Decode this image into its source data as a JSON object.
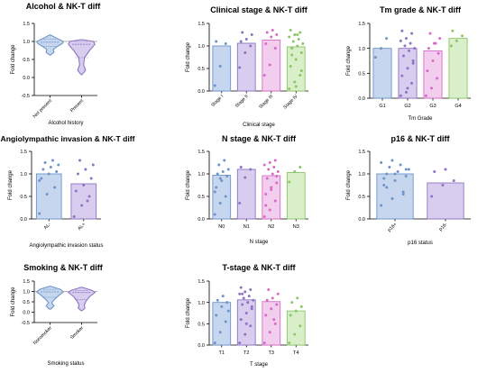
{
  "panels": [
    {
      "title": "Alcohol & NK-T diff",
      "type": "violin",
      "ylabel": "Fold change",
      "xlabel": "Alcohol history",
      "ylim": [
        -0.5,
        1.5
      ],
      "yticks": [
        "-0.5",
        "0.0",
        "0.5",
        "1.0",
        "1.5"
      ],
      "reference_line": 1.0,
      "rotate_ticks": true,
      "categories": [
        "Not present",
        "Present"
      ],
      "colors": [
        "#6f94c9",
        "#8f73c4"
      ],
      "fills": [
        "#c6d6ee",
        "#d8cdee"
      ],
      "violins": [
        {
          "min": 0.62,
          "max": 1.18,
          "median": 0.98,
          "q1": 0.86,
          "q3": 1.06,
          "profile": [
            [
              0.62,
              0.02
            ],
            [
              0.7,
              0.3
            ],
            [
              0.78,
              0.25
            ],
            [
              0.86,
              0.55
            ],
            [
              0.95,
              0.95
            ],
            [
              1.0,
              1.0
            ],
            [
              1.08,
              0.55
            ],
            [
              1.18,
              0.03
            ]
          ]
        },
        {
          "min": 0.08,
          "max": 1.05,
          "median": 0.92,
          "q1": 0.55,
          "q3": 1.0,
          "profile": [
            [
              0.08,
              0.03
            ],
            [
              0.2,
              0.3
            ],
            [
              0.35,
              0.15
            ],
            [
              0.55,
              0.22
            ],
            [
              0.75,
              0.6
            ],
            [
              0.92,
              1.0
            ],
            [
              1.0,
              0.9
            ],
            [
              1.05,
              0.05
            ]
          ]
        }
      ]
    },
    {
      "title": "Clinical stage & NK-T diff",
      "type": "bar",
      "ylabel": "Fold change",
      "xlabel": "Clinical stage",
      "ylim": [
        0.0,
        1.5
      ],
      "yticks": [
        "0.0",
        "0.5",
        "1.0",
        "1.5"
      ],
      "rotate_ticks": true,
      "categories": [
        "Stage I",
        "Stage II",
        "Stage III",
        "Stage IV"
      ],
      "values": [
        1.0,
        1.06,
        1.13,
        0.98
      ],
      "colors": [
        "#6f94c9",
        "#8f73c4",
        "#d66cc7",
        "#8cc668"
      ],
      "fills": [
        "#c6d6ee",
        "#d8cdee",
        "#f3cdee",
        "#d8efca"
      ],
      "points": [
        [
          0.12,
          0.55,
          1.05,
          1.1
        ],
        [
          0.52,
          0.85,
          1.0,
          1.1,
          1.15,
          1.25,
          1.3
        ],
        [
          0.35,
          0.58,
          0.95,
          1.05,
          1.2,
          1.25,
          1.3,
          1.35
        ],
        [
          0.05,
          0.2,
          0.35,
          0.55,
          0.7,
          0.85,
          0.95,
          1.0,
          1.05,
          1.1,
          1.15,
          1.2,
          1.25,
          1.3,
          1.35,
          0.1,
          0.45,
          0.8,
          1.25
        ]
      ]
    },
    {
      "title": "Tm grade & NK-T diff",
      "type": "bar",
      "ylabel": "Fold change",
      "xlabel": "Tm Grade",
      "ylim": [
        0.0,
        1.5
      ],
      "yticks": [
        "0.0",
        "0.5",
        "1.0",
        "1.5"
      ],
      "rotate_ticks": false,
      "categories": [
        "G1",
        "G2",
        "G3",
        "G4"
      ],
      "values": [
        1.0,
        1.0,
        0.95,
        1.2
      ],
      "colors": [
        "#6f94c9",
        "#8f73c4",
        "#d66cc7",
        "#8cc668"
      ],
      "fills": [
        "#c6d6ee",
        "#d8cdee",
        "#f3cdee",
        "#d8efca"
      ],
      "points": [
        [
          0.82,
          1.0,
          1.2
        ],
        [
          0.05,
          0.12,
          0.3,
          0.45,
          0.6,
          0.75,
          0.85,
          0.95,
          1.0,
          1.05,
          1.1,
          1.15,
          1.2,
          1.3,
          1.35,
          0.2,
          0.7
        ],
        [
          0.05,
          0.2,
          0.4,
          0.55,
          0.75,
          0.9,
          1.0,
          1.1,
          1.2,
          1.3,
          1.1
        ],
        [
          1.05,
          1.15,
          1.25,
          1.35
        ]
      ]
    },
    {
      "title": "Angiolympathic invasion & NK-T diff",
      "type": "bar",
      "ylabel": "Fold change",
      "xlabel": "Angiolympathic invasion status",
      "ylim": [
        0.0,
        1.5
      ],
      "yticks": [
        "0.0",
        "0.5",
        "1.0",
        "1.5"
      ],
      "rotate_ticks": true,
      "categories": [
        "AL-",
        "AL+"
      ],
      "values": [
        1.0,
        0.78
      ],
      "colors": [
        "#6f94c9",
        "#8f73c4"
      ],
      "fills": [
        "#c6d6ee",
        "#d8cdee"
      ],
      "points": [
        [
          0.12,
          0.55,
          0.7,
          0.9,
          1.0,
          1.05,
          1.1,
          1.15,
          1.2,
          1.25,
          1.3,
          0.85
        ],
        [
          0.05,
          0.3,
          0.5,
          0.62,
          0.75,
          0.9,
          1.0,
          1.1,
          1.2,
          1.3,
          0.4
        ]
      ]
    },
    {
      "title": "N stage & NK-T diff",
      "type": "bar",
      "ylabel": "Fold change",
      "xlabel": "N stage",
      "ylim": [
        0.0,
        1.5
      ],
      "yticks": [
        "0.0",
        "0.5",
        "1.0",
        "1.5"
      ],
      "rotate_ticks": false,
      "categories": [
        "N0",
        "N1",
        "N2",
        "N3"
      ],
      "values": [
        0.97,
        1.1,
        0.96,
        1.03
      ],
      "colors": [
        "#6f94c9",
        "#8f73c4",
        "#d66cc7",
        "#8cc668"
      ],
      "fills": [
        "#c6d6ee",
        "#d8cdee",
        "#f3cdee",
        "#d8efca"
      ],
      "points": [
        [
          0.1,
          0.35,
          0.5,
          0.7,
          0.85,
          0.95,
          1.0,
          1.05,
          1.1,
          1.2,
          1.3,
          0.6,
          0.9
        ],
        [
          0.35,
          0.92,
          1.1,
          1.15
        ],
        [
          0.05,
          0.2,
          0.4,
          0.55,
          0.7,
          0.8,
          0.9,
          1.0,
          1.05,
          1.1,
          1.15,
          1.2,
          1.25,
          1.3,
          0.3,
          0.65,
          0.95
        ],
        [
          0.82,
          1.05,
          1.15
        ]
      ]
    },
    {
      "title": "p16 & NK-T diff",
      "type": "bar",
      "ylabel": "Fold change",
      "xlabel": "p16 status",
      "ylim": [
        0.0,
        1.5
      ],
      "yticks": [
        "0.0",
        "0.5",
        "1.0",
        "1.5"
      ],
      "rotate_ticks": true,
      "categories": [
        "p16+",
        "p16-"
      ],
      "values": [
        1.0,
        0.8
      ],
      "colors": [
        "#6f94c9",
        "#8f73c4"
      ],
      "fills": [
        "#c6d6ee",
        "#d8cdee"
      ],
      "points": [
        [
          0.3,
          0.45,
          0.6,
          0.75,
          0.85,
          0.95,
          1.0,
          1.05,
          1.1,
          1.15,
          1.2,
          1.25,
          1.3,
          0.55,
          0.9,
          1.0,
          1.1,
          0.7
        ],
        [
          0.5,
          0.75,
          0.85,
          1.05,
          1.1
        ]
      ]
    },
    {
      "title": "Smoking & NK-T diff",
      "type": "violin",
      "ylabel": "Fold change",
      "xlabel": "Smoking status",
      "ylim": [
        -0.5,
        1.5
      ],
      "yticks": [
        "-0.5",
        "0.0",
        "0.5",
        "1.0",
        "1.5"
      ],
      "reference_line": 1.0,
      "rotate_ticks": true,
      "categories": [
        "Nonsmoker",
        "Smoker"
      ],
      "colors": [
        "#6f94c9",
        "#8f73c4"
      ],
      "fills": [
        "#c6d6ee",
        "#d8cdee"
      ],
      "violins": [
        {
          "min": 0.15,
          "max": 1.25,
          "median": 0.98,
          "q1": 0.72,
          "q3": 1.1,
          "profile": [
            [
              0.15,
              0.05
            ],
            [
              0.3,
              0.3
            ],
            [
              0.45,
              0.12
            ],
            [
              0.6,
              0.3
            ],
            [
              0.8,
              0.65
            ],
            [
              0.98,
              1.0
            ],
            [
              1.1,
              0.8
            ],
            [
              1.25,
              0.05
            ]
          ]
        },
        {
          "min": 0.08,
          "max": 1.2,
          "median": 0.95,
          "q1": 0.6,
          "q3": 1.05,
          "profile": [
            [
              0.08,
              0.05
            ],
            [
              0.2,
              0.25
            ],
            [
              0.35,
              0.2
            ],
            [
              0.55,
              0.35
            ],
            [
              0.75,
              0.6
            ],
            [
              0.95,
              1.0
            ],
            [
              1.05,
              0.8
            ],
            [
              1.2,
              0.05
            ]
          ]
        }
      ]
    },
    {
      "title": "T-stage & NK-T diff",
      "type": "bar",
      "ylabel": "Fold change",
      "xlabel": "T stage",
      "ylim": [
        0.0,
        1.5
      ],
      "yticks": [
        "0.0",
        "0.5",
        "1.0",
        "1.5"
      ],
      "rotate_ticks": false,
      "categories": [
        "T1",
        "T2",
        "T3",
        "T4"
      ],
      "values": [
        1.0,
        1.06,
        1.02,
        0.8
      ],
      "colors": [
        "#6f94c9",
        "#8f73c4",
        "#d66cc7",
        "#8cc668"
      ],
      "fills": [
        "#c6d6ee",
        "#d8cdee",
        "#f3cdee",
        "#d8efca"
      ],
      "points": [
        [
          0.05,
          0.3,
          0.55,
          0.7,
          0.9,
          1.0,
          1.05,
          1.15,
          0.8
        ],
        [
          0.05,
          0.25,
          0.45,
          0.6,
          0.75,
          0.85,
          0.95,
          1.0,
          1.05,
          1.1,
          1.15,
          1.2,
          1.25,
          1.3,
          1.35,
          0.5,
          0.9,
          1.2
        ],
        [
          0.05,
          0.3,
          0.5,
          0.7,
          0.85,
          0.95,
          1.05,
          1.1,
          1.2,
          1.3,
          0.6
        ],
        [
          0.05,
          0.25,
          0.45,
          0.7,
          0.8,
          0.9,
          1.0,
          1.1
        ]
      ]
    }
  ],
  "chart_data": [
    {
      "type": "violin",
      "title": "Alcohol & NK-T diff",
      "xlabel": "Alcohol history",
      "ylabel": "Fold change",
      "categories": [
        "Not present",
        "Present"
      ],
      "ylim": [
        -0.5,
        1.5
      ],
      "reference_line": 1.0,
      "medians": [
        0.98,
        0.92
      ]
    },
    {
      "type": "bar",
      "title": "Clinical stage & NK-T diff",
      "xlabel": "Clinical stage",
      "ylabel": "Fold change",
      "categories": [
        "Stage I",
        "Stage II",
        "Stage III",
        "Stage IV"
      ],
      "values": [
        1.0,
        1.06,
        1.13,
        0.98
      ],
      "ylim": [
        0,
        1.5
      ]
    },
    {
      "type": "bar",
      "title": "Tm grade & NK-T diff",
      "xlabel": "Tm Grade",
      "ylabel": "Fold change",
      "categories": [
        "G1",
        "G2",
        "G3",
        "G4"
      ],
      "values": [
        1.0,
        1.0,
        0.95,
        1.2
      ],
      "ylim": [
        0,
        1.5
      ]
    },
    {
      "type": "bar",
      "title": "Angiolympathic invasion & NK-T diff",
      "xlabel": "Angiolympathic invasion status",
      "ylabel": "Fold change",
      "categories": [
        "AL-",
        "AL+"
      ],
      "values": [
        1.0,
        0.78
      ],
      "ylim": [
        0,
        1.5
      ]
    },
    {
      "type": "bar",
      "title": "N stage & NK-T diff",
      "xlabel": "N stage",
      "ylabel": "Fold change",
      "categories": [
        "N0",
        "N1",
        "N2",
        "N3"
      ],
      "values": [
        0.97,
        1.1,
        0.96,
        1.03
      ],
      "ylim": [
        0,
        1.5
      ]
    },
    {
      "type": "bar",
      "title": "p16 & NK-T diff",
      "xlabel": "p16 status",
      "ylabel": "Fold change",
      "categories": [
        "p16+",
        "p16-"
      ],
      "values": [
        1.0,
        0.8
      ],
      "ylim": [
        0,
        1.5
      ]
    },
    {
      "type": "violin",
      "title": "Smoking & NK-T diff",
      "xlabel": "Smoking status",
      "ylabel": "Fold change",
      "categories": [
        "Nonsmoker",
        "Smoker"
      ],
      "ylim": [
        -0.5,
        1.5
      ],
      "reference_line": 1.0,
      "medians": [
        0.98,
        0.95
      ]
    },
    {
      "type": "bar",
      "title": "T-stage & NK-T diff",
      "xlabel": "T stage",
      "ylabel": "Fold change",
      "categories": [
        "T1",
        "T2",
        "T3",
        "T4"
      ],
      "values": [
        1.0,
        1.06,
        1.02,
        0.8
      ],
      "ylim": [
        0,
        1.5
      ]
    }
  ]
}
